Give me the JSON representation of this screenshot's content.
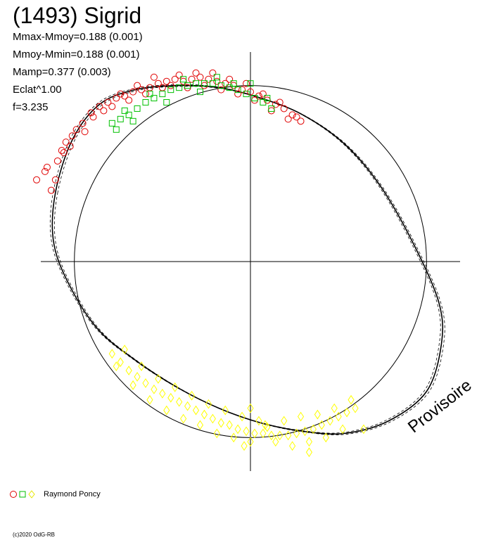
{
  "title": "(1493) Sigrid",
  "stats": [
    "Mmax-Mmoy=0.188 (0.001)",
    "Mmoy-Mmin=0.188 (0.001)",
    "Mamp=0.377 (0.003)",
    "Eclat^1.00",
    "f=3.235"
  ],
  "watermark": "Provisoire",
  "copyright": "(c)2020 OdG-RB",
  "colors": {
    "circle_marker": "#e00000",
    "square_marker": "#00c000",
    "diamond_marker": "#ffff00",
    "axis": "#000000",
    "curve": "#000000"
  },
  "chart_data": {
    "type": "scatter",
    "title": "(1493) Sigrid",
    "xlabel": "",
    "ylabel": "",
    "xlim": [
      -1.0,
      1.0
    ],
    "ylim": [
      -1.0,
      1.0
    ],
    "grid": false,
    "legend_position": "bottom-left",
    "reference_circle_radius": 0.84,
    "fit_curve": {
      "description_points": [
        [
          -0.93,
          0.33
        ],
        [
          -0.85,
          0.58
        ],
        [
          -0.72,
          0.75
        ],
        [
          -0.55,
          0.82
        ],
        [
          -0.35,
          0.84
        ],
        [
          -0.15,
          0.83
        ],
        [
          0.05,
          0.78
        ],
        [
          0.25,
          0.7
        ],
        [
          0.45,
          0.56
        ],
        [
          0.62,
          0.36
        ],
        [
          0.78,
          0.08
        ],
        [
          0.9,
          -0.2
        ],
        [
          0.91,
          -0.4
        ],
        [
          0.84,
          -0.62
        ],
        [
          0.66,
          -0.76
        ],
        [
          0.45,
          -0.82
        ],
        [
          0.25,
          -0.81
        ],
        [
          0.05,
          -0.77
        ],
        [
          -0.15,
          -0.7
        ],
        [
          -0.35,
          -0.6
        ],
        [
          -0.55,
          -0.47
        ],
        [
          -0.73,
          -0.32
        ],
        [
          -0.87,
          -0.1
        ],
        [
          -0.94,
          0.1
        ],
        [
          -0.93,
          0.33
        ]
      ]
    },
    "series": [
      {
        "marker": "circle",
        "color": "#e00000",
        "x": [
          -1.02,
          -0.98,
          -0.95,
          -0.92,
          -0.9,
          -0.88,
          -0.86,
          -0.83,
          -0.8,
          -0.76,
          -0.72,
          -0.68,
          -0.64,
          -0.6,
          -0.56,
          -0.52,
          -0.48,
          -0.44,
          -0.4,
          -0.36,
          -0.32,
          -0.28,
          -0.24,
          -0.2,
          -0.16,
          -0.12,
          -0.08,
          -0.04,
          0.0,
          0.04,
          0.08,
          0.12,
          0.16,
          0.2,
          0.24,
          -0.97,
          -0.93,
          -0.89,
          -0.85,
          -0.79,
          -0.75,
          -0.7,
          -0.66,
          -0.62,
          -0.58,
          -0.54,
          -0.5,
          -0.46,
          -0.42,
          -0.38,
          -0.34,
          -0.3,
          -0.26,
          -0.22,
          -0.18,
          -0.14,
          -0.1,
          -0.06,
          -0.02,
          0.02,
          0.06,
          0.1,
          0.14,
          0.18,
          0.22
        ],
        "y": [
          0.39,
          0.43,
          0.34,
          0.48,
          0.53,
          0.57,
          0.55,
          0.63,
          0.66,
          0.71,
          0.74,
          0.76,
          0.78,
          0.79,
          0.81,
          0.82,
          0.83,
          0.85,
          0.86,
          0.87,
          0.86,
          0.87,
          0.88,
          0.87,
          0.86,
          0.85,
          0.84,
          0.82,
          0.81,
          0.79,
          0.77,
          0.75,
          0.73,
          0.7,
          0.67,
          0.45,
          0.39,
          0.52,
          0.6,
          0.62,
          0.69,
          0.72,
          0.74,
          0.8,
          0.77,
          0.84,
          0.8,
          0.88,
          0.83,
          0.84,
          0.89,
          0.83,
          0.9,
          0.84,
          0.9,
          0.82,
          0.87,
          0.8,
          0.85,
          0.77,
          0.8,
          0.72,
          0.76,
          0.68,
          0.69
        ]
      },
      {
        "marker": "square",
        "color": "#00c000",
        "x": [
          -0.66,
          -0.62,
          -0.58,
          -0.54,
          -0.5,
          -0.46,
          -0.42,
          -0.38,
          -0.34,
          -0.3,
          -0.26,
          -0.22,
          -0.18,
          -0.14,
          -0.1,
          -0.06,
          -0.02,
          0.02,
          0.06,
          0.1,
          -0.64,
          -0.6,
          -0.56,
          -0.48,
          -0.4,
          -0.32,
          -0.24,
          -0.16,
          -0.08,
          0.0,
          0.08
        ],
        "y": [
          0.66,
          0.68,
          0.7,
          0.73,
          0.76,
          0.78,
          0.8,
          0.82,
          0.83,
          0.84,
          0.85,
          0.85,
          0.85,
          0.84,
          0.83,
          0.82,
          0.8,
          0.78,
          0.76,
          0.73,
          0.63,
          0.72,
          0.67,
          0.8,
          0.76,
          0.87,
          0.81,
          0.88,
          0.85,
          0.85,
          0.78
        ]
      },
      {
        "marker": "diamond",
        "color": "#ffff00",
        "x": [
          -0.66,
          -0.62,
          -0.58,
          -0.54,
          -0.5,
          -0.46,
          -0.42,
          -0.38,
          -0.34,
          -0.3,
          -0.26,
          -0.22,
          -0.18,
          -0.14,
          -0.1,
          -0.06,
          -0.02,
          0.02,
          0.06,
          0.1,
          0.14,
          0.18,
          0.22,
          0.26,
          0.3,
          0.34,
          0.38,
          0.42,
          0.46,
          0.5,
          0.54,
          -0.64,
          -0.6,
          -0.56,
          -0.52,
          -0.48,
          -0.44,
          -0.4,
          -0.36,
          -0.32,
          -0.28,
          -0.24,
          -0.2,
          -0.16,
          -0.12,
          -0.08,
          -0.04,
          0.0,
          0.04,
          0.08,
          0.12,
          0.16,
          0.2,
          0.24,
          0.28,
          0.32,
          0.36,
          0.4,
          0.44,
          0.48,
          -0.03,
          0.0,
          0.28,
          0.07
        ],
        "y": [
          -0.44,
          -0.48,
          -0.52,
          -0.55,
          -0.58,
          -0.61,
          -0.63,
          -0.65,
          -0.67,
          -0.69,
          -0.71,
          -0.73,
          -0.75,
          -0.77,
          -0.78,
          -0.8,
          -0.81,
          -0.82,
          -0.82,
          -0.83,
          -0.83,
          -0.83,
          -0.82,
          -0.81,
          -0.8,
          -0.78,
          -0.76,
          -0.74,
          -0.72,
          -0.7,
          -0.8,
          -0.5,
          -0.42,
          -0.59,
          -0.5,
          -0.66,
          -0.56,
          -0.71,
          -0.6,
          -0.75,
          -0.64,
          -0.78,
          -0.68,
          -0.82,
          -0.71,
          -0.84,
          -0.74,
          -0.86,
          -0.76,
          -0.79,
          -0.86,
          -0.76,
          -0.88,
          -0.74,
          -0.86,
          -0.73,
          -0.84,
          -0.7,
          -0.8,
          -0.66,
          -0.88,
          -0.7,
          -0.91,
          -0.78
        ]
      }
    ],
    "legend": [
      {
        "markers": [
          "circle",
          "square",
          "diamond"
        ],
        "label": "Raymond Poncy"
      }
    ]
  }
}
